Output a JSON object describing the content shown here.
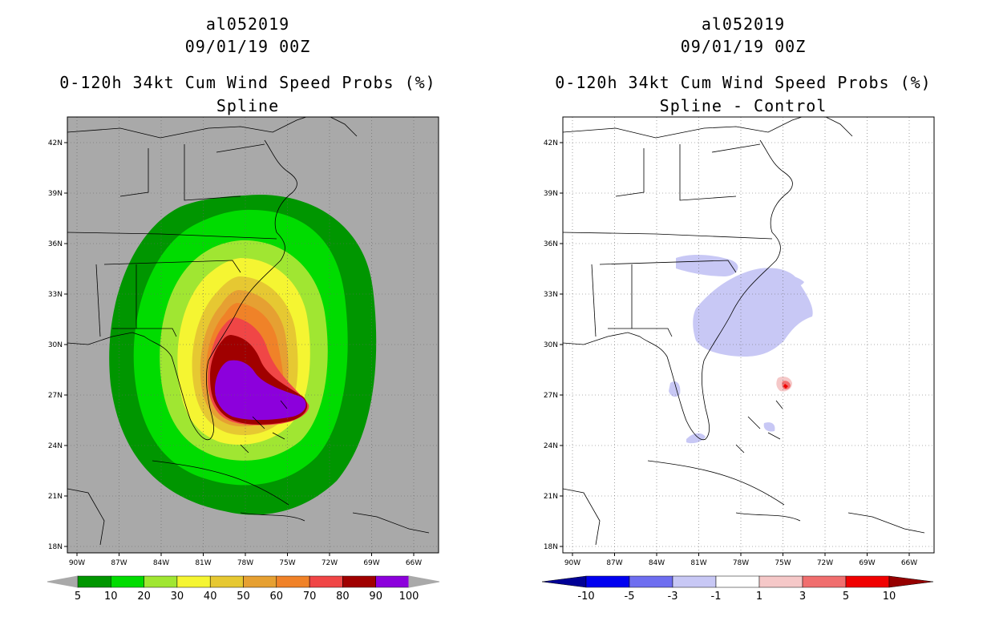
{
  "left_panel": {
    "storm_id": "al052019",
    "datetime": "09/01/19 00Z",
    "product": "0-120h 34kt Cum Wind Speed Probs (%)",
    "subtitle": "Spline",
    "background_color": "#a9a9a9",
    "colorbar": {
      "colors": [
        "#009600",
        "#00dc00",
        "#a0e632",
        "#f5f532",
        "#e6c832",
        "#e6a032",
        "#f08228",
        "#f04646",
        "#a00000",
        "#8c00dc"
      ],
      "labels": [
        "5",
        "10",
        "20",
        "30",
        "40",
        "50",
        "60",
        "70",
        "80",
        "90",
        "100"
      ]
    }
  },
  "right_panel": {
    "storm_id": "al052019",
    "datetime": "09/01/19 00Z",
    "product": "0-120h 34kt Cum Wind Speed Probs (%)",
    "subtitle": "Spline - Control",
    "background_color": "#ffffff",
    "colorbar": {
      "colors": [
        "#000096",
        "#0000f0",
        "#6e6ef0",
        "#c8c8f5",
        "#ffffff",
        "#f5c8c8",
        "#f06e6e",
        "#f00000",
        "#960000"
      ],
      "labels": [
        "-10",
        "-5",
        "-3",
        "-1",
        "1",
        "3",
        "5",
        "10"
      ]
    }
  },
  "map": {
    "lon_labels": [
      "90W",
      "87W",
      "84W",
      "81W",
      "78W",
      "75W",
      "72W",
      "69W",
      "66W"
    ],
    "lat_labels": [
      "42N",
      "39N",
      "36N",
      "33N",
      "30N",
      "27N",
      "24N",
      "21N",
      "18N"
    ]
  }
}
